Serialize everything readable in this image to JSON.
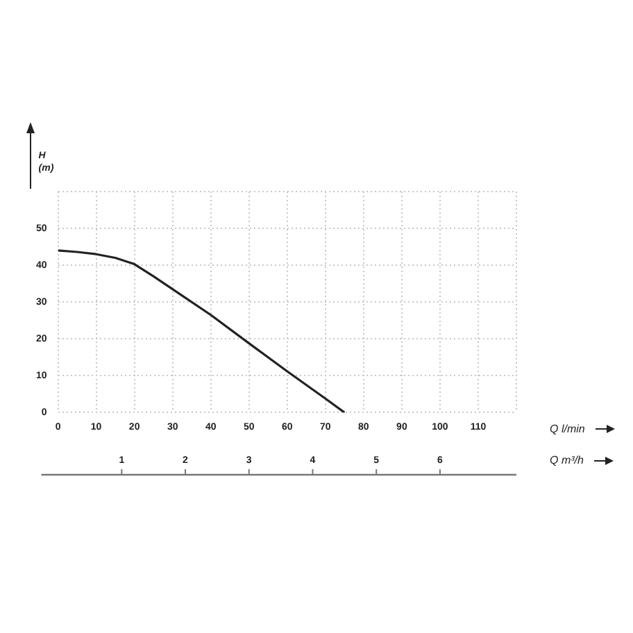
{
  "chart_data": {
    "type": "line",
    "xlabel": "Q l/min",
    "x2label": "Q m³/h",
    "ylabel": "H (m)",
    "x": [
      0,
      5,
      10,
      15,
      20,
      25,
      30,
      40,
      50,
      60,
      70,
      75
    ],
    "series": [
      {
        "color": "#222222",
        "values": [
          44,
          43.6,
          43,
          42,
          40.3,
          37,
          33.5,
          26.5,
          18.8,
          11.2,
          3.8,
          0
        ]
      }
    ],
    "xlim": [
      0,
      120
    ],
    "xticks": [
      0,
      10,
      20,
      30,
      40,
      50,
      60,
      70,
      80,
      90,
      100,
      110,
      {
        "value": 120,
        "label": null
      }
    ],
    "x2lim": [
      0,
      7.2
    ],
    "x2ticks": [
      1,
      2,
      3,
      4,
      5,
      6
    ],
    "ylim": [
      0,
      60
    ],
    "yticks": [
      0,
      10,
      20,
      30,
      40,
      50,
      {
        "value": 60,
        "label": null
      }
    ],
    "grid": true,
    "marker": "none",
    "line_style": "solid"
  }
}
